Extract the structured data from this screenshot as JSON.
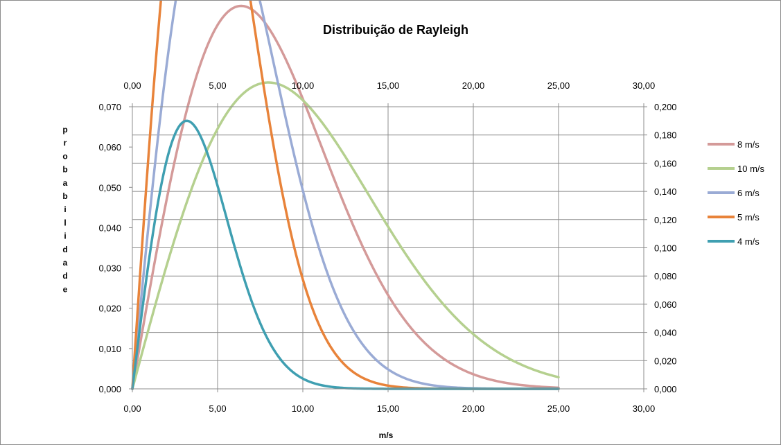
{
  "chart_data": {
    "type": "line",
    "title": "Distribuição de Rayleigh",
    "xlabel": "m/s",
    "ylabel": "probabilidade",
    "xlim": [
      0,
      30
    ],
    "ylim_left": [
      0,
      0.07
    ],
    "ylim_right": [
      0,
      0.2
    ],
    "x_ticks": [
      "0,00",
      "5,00",
      "10,00",
      "15,00",
      "20,00",
      "25,00",
      "30,00"
    ],
    "y_left_ticks": [
      "0,000",
      "0,010",
      "0,020",
      "0,030",
      "0,040",
      "0,050",
      "0,060",
      "0,070"
    ],
    "y_right_ticks": [
      "0,000",
      "0,020",
      "0,040",
      "0,060",
      "0,080",
      "0,100",
      "0,120",
      "0,140",
      "0,160",
      "0,180",
      "0,200"
    ],
    "grid": true,
    "legend_position": "right",
    "x_range": [
      0,
      25
    ],
    "series": [
      {
        "name": "8 m/s",
        "mean_speed": 8,
        "color": "#d49a99",
        "axis": "left"
      },
      {
        "name": "10 m/s",
        "mean_speed": 10,
        "color": "#b5d08f",
        "axis": "left"
      },
      {
        "name": "6 m/s",
        "mean_speed": 6,
        "color": "#9aabd5",
        "axis": "left"
      },
      {
        "name": "5 m/s",
        "mean_speed": 5,
        "color": "#e8833a",
        "axis": "left"
      },
      {
        "name": "4 m/s",
        "mean_speed": 4,
        "color": "#3f9fb1",
        "axis": "right"
      }
    ]
  }
}
